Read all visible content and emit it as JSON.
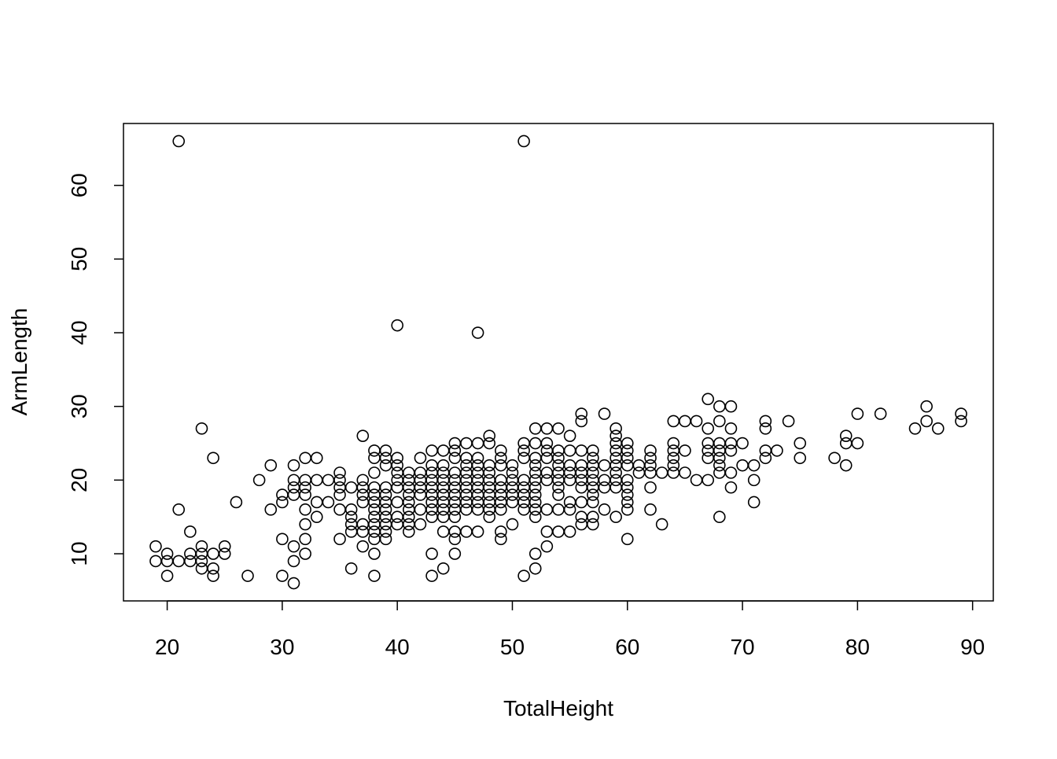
{
  "chart_data": {
    "type": "scatter",
    "x_label": "TotalHeight",
    "y_label": "ArmLength",
    "xlim": [
      16.2,
      91.8
    ],
    "ylim": [
      3.6,
      68.4
    ],
    "xticks": [
      20,
      30,
      40,
      50,
      60,
      70,
      80,
      90
    ],
    "yticks": [
      10,
      20,
      30,
      40,
      50,
      60
    ],
    "color": "#000000",
    "x": [
      19,
      19,
      20,
      20,
      20,
      21,
      21,
      21,
      22,
      22,
      22,
      23,
      23,
      23,
      23,
      23,
      24,
      24,
      24,
      24,
      25,
      25,
      26,
      27,
      28,
      29,
      29,
      30,
      30,
      30,
      30,
      31,
      31,
      31,
      31,
      31,
      31,
      31,
      32,
      32,
      32,
      32,
      32,
      32,
      32,
      32,
      33,
      33,
      33,
      33,
      34,
      34,
      35,
      35,
      35,
      35,
      35,
      35,
      36,
      36,
      36,
      36,
      36,
      36,
      37,
      37,
      37,
      37,
      37,
      37,
      37,
      37,
      38,
      38,
      38,
      38,
      38,
      38,
      38,
      38,
      38,
      38,
      38,
      38,
      38,
      39,
      39,
      39,
      39,
      39,
      39,
      39,
      39,
      39,
      39,
      39,
      40,
      40,
      40,
      40,
      40,
      40,
      40,
      40,
      40,
      41,
      41,
      41,
      41,
      41,
      41,
      41,
      41,
      41,
      42,
      42,
      42,
      42,
      42,
      42,
      42,
      43,
      43,
      43,
      43,
      43,
      43,
      43,
      43,
      43,
      43,
      43,
      44,
      44,
      44,
      44,
      44,
      44,
      44,
      44,
      44,
      44,
      44,
      45,
      45,
      45,
      45,
      45,
      45,
      45,
      45,
      45,
      45,
      45,
      45,
      45,
      46,
      46,
      46,
      46,
      46,
      46,
      46,
      46,
      46,
      46,
      47,
      47,
      47,
      47,
      47,
      47,
      47,
      47,
      47,
      47,
      47,
      48,
      48,
      48,
      48,
      48,
      48,
      48,
      48,
      48,
      48,
      49,
      49,
      49,
      49,
      49,
      49,
      49,
      49,
      49,
      49,
      50,
      50,
      50,
      50,
      50,
      50,
      50,
      51,
      51,
      51,
      51,
      51,
      51,
      51,
      51,
      51,
      51,
      52,
      52,
      52,
      52,
      52,
      52,
      52,
      52,
      52,
      52,
      52,
      52,
      52,
      53,
      53,
      53,
      53,
      53,
      53,
      53,
      53,
      53,
      54,
      54,
      54,
      54,
      54,
      54,
      54,
      54,
      54,
      54,
      55,
      55,
      55,
      55,
      55,
      55,
      55,
      55,
      56,
      56,
      56,
      56,
      56,
      56,
      56,
      56,
      56,
      56,
      57,
      57,
      57,
      57,
      57,
      57,
      57,
      57,
      57,
      57,
      58,
      58,
      58,
      58,
      58,
      59,
      59,
      59,
      59,
      59,
      59,
      59,
      59,
      59,
      59,
      60,
      60,
      60,
      60,
      60,
      60,
      60,
      60,
      60,
      60,
      61,
      61,
      62,
      62,
      62,
      62,
      62,
      62,
      63,
      63,
      64,
      64,
      64,
      64,
      64,
      64,
      65,
      65,
      65,
      66,
      66,
      67,
      67,
      67,
      67,
      67,
      67,
      68,
      68,
      68,
      68,
      68,
      68,
      68,
      68,
      69,
      69,
      69,
      69,
      69,
      69,
      70,
      70,
      71,
      71,
      71,
      72,
      72,
      72,
      72,
      73,
      74,
      75,
      75,
      78,
      79,
      79,
      79,
      80,
      80,
      82,
      85,
      86,
      86,
      87,
      89,
      89
    ],
    "y": [
      11,
      9,
      10,
      9,
      7,
      9,
      16,
      66,
      13,
      10,
      9,
      27,
      11,
      10,
      9,
      8,
      23,
      10,
      8,
      7,
      11,
      10,
      17,
      7,
      20,
      22,
      16,
      18,
      17,
      12,
      7,
      22,
      20,
      19,
      18,
      11,
      9,
      6,
      23,
      20,
      19,
      18,
      16,
      14,
      12,
      10,
      23,
      20,
      17,
      15,
      20,
      17,
      21,
      20,
      19,
      18,
      16,
      12,
      19,
      16,
      15,
      14,
      13,
      8,
      26,
      20,
      19,
      18,
      17,
      14,
      13,
      11,
      24,
      23,
      21,
      19,
      18,
      17,
      16,
      15,
      14,
      13,
      12,
      10,
      7,
      24,
      23,
      22,
      19,
      18,
      17,
      16,
      15,
      14,
      13,
      12,
      41,
      23,
      22,
      21,
      20,
      19,
      17,
      15,
      14,
      21,
      20,
      19,
      18,
      17,
      16,
      15,
      14,
      13,
      23,
      21,
      20,
      19,
      18,
      16,
      14,
      24,
      22,
      21,
      20,
      19,
      18,
      17,
      16,
      15,
      10,
      7,
      24,
      22,
      21,
      20,
      19,
      18,
      17,
      16,
      15,
      13,
      8,
      25,
      24,
      23,
      21,
      20,
      19,
      18,
      17,
      16,
      15,
      13,
      12,
      10,
      25,
      23,
      22,
      21,
      20,
      19,
      18,
      17,
      16,
      13,
      40,
      25,
      23,
      22,
      21,
      20,
      19,
      18,
      17,
      16,
      13,
      26,
      25,
      22,
      21,
      20,
      19,
      18,
      17,
      16,
      15,
      24,
      23,
      22,
      20,
      19,
      18,
      17,
      16,
      13,
      12,
      22,
      21,
      20,
      19,
      18,
      17,
      14,
      66,
      25,
      24,
      23,
      20,
      19,
      18,
      17,
      16,
      7,
      27,
      25,
      23,
      22,
      21,
      20,
      19,
      18,
      17,
      16,
      15,
      10,
      8,
      27,
      25,
      24,
      23,
      21,
      20,
      16,
      13,
      11,
      27,
      24,
      23,
      22,
      21,
      20,
      19,
      18,
      16,
      13,
      26,
      24,
      22,
      21,
      20,
      17,
      16,
      13,
      29,
      28,
      24,
      22,
      21,
      20,
      19,
      17,
      15,
      14,
      24,
      23,
      22,
      21,
      20,
      19,
      18,
      17,
      15,
      14,
      29,
      22,
      20,
      19,
      16,
      27,
      26,
      25,
      24,
      23,
      22,
      21,
      20,
      19,
      15,
      25,
      24,
      23,
      22,
      20,
      19,
      18,
      17,
      16,
      12,
      22,
      21,
      24,
      23,
      22,
      21,
      19,
      16,
      21,
      14,
      28,
      25,
      24,
      23,
      22,
      21,
      28,
      24,
      21,
      28,
      20,
      31,
      27,
      25,
      24,
      23,
      20,
      30,
      28,
      25,
      24,
      23,
      22,
      21,
      15,
      30,
      27,
      25,
      24,
      21,
      19,
      25,
      22,
      22,
      20,
      17,
      28,
      27,
      24,
      23,
      24,
      28,
      25,
      23,
      23,
      26,
      25,
      22,
      29,
      25,
      29,
      27,
      30,
      28,
      27,
      29,
      28
    ]
  }
}
